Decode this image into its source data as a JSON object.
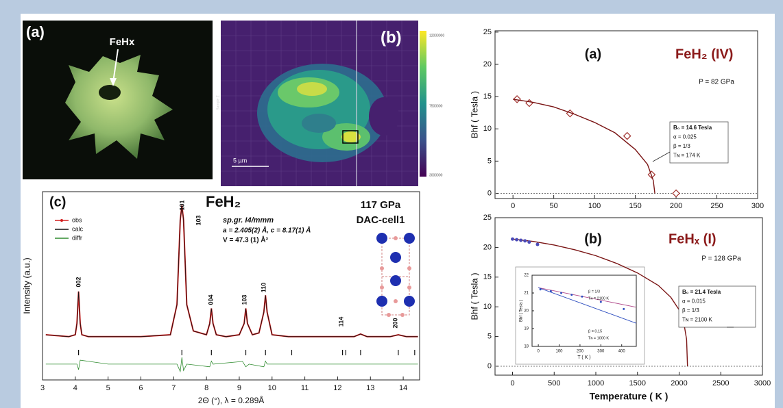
{
  "optical_image": {
    "label": "(a)",
    "arrow_label": "FeHx"
  },
  "map_image": {
    "label": "(b)",
    "scale_bar": "5 µm",
    "axis_label": "Sample Z",
    "colorbar_ticks": [
      "12000000",
      "7500000",
      "3000000"
    ]
  },
  "chart_data": [
    {
      "type": "line",
      "panel_label": "(c)",
      "title": "FeH₂",
      "annotations": [
        "sp.gr. I4/mmm",
        "a = 2.405(2) Å, c = 8.17(1) Å",
        "V = 47.3 (1) Å³",
        "117 GPa",
        "DAC-cell1"
      ],
      "peak_labels": [
        "002",
        "101",
        "103",
        "004",
        "103",
        "110",
        "114",
        "200"
      ],
      "xlabel": "2Θ (°), λ = 0.289Å",
      "ylabel": "Intensity (a.u.)",
      "xlim": [
        3,
        14.5
      ],
      "ylim": [
        0,
        100
      ],
      "xticks": [
        3,
        4,
        5,
        6,
        7,
        8,
        9,
        10,
        11,
        12,
        13,
        14
      ],
      "legend": "upper left",
      "series": [
        {
          "name": "obs",
          "color": "#d42020",
          "x": [
            3.1,
            3.8,
            4.0,
            4.05,
            4.1,
            4.15,
            4.2,
            4.4,
            5,
            6,
            6.9,
            7.1,
            7.2,
            7.25,
            7.3,
            7.4,
            7.6,
            8.0,
            8.1,
            8.15,
            8.2,
            8.3,
            8.6,
            9.0,
            9.15,
            9.2,
            9.25,
            9.4,
            9.6,
            9.75,
            9.8,
            9.85,
            10.0,
            10.5,
            11.5,
            12.5,
            12.7,
            12.9,
            13.6,
            13.85,
            14.1,
            14.45
          ],
          "values": [
            24,
            23,
            24,
            30,
            47,
            30,
            24,
            23,
            23,
            23,
            24,
            40,
            85,
            92.7,
            85,
            40,
            26,
            24,
            30,
            38,
            30,
            24,
            23,
            24,
            30,
            38,
            30,
            24,
            25,
            36,
            45,
            36,
            24,
            23,
            23,
            23,
            24.4,
            23,
            23,
            24,
            23,
            23
          ]
        },
        {
          "name": "calc",
          "color": "#111111",
          "x": [
            3.1,
            3.8,
            4.0,
            4.05,
            4.1,
            4.15,
            4.2,
            4.4,
            5,
            6,
            6.9,
            7.1,
            7.2,
            7.25,
            7.3,
            7.4,
            7.6,
            8.0,
            8.1,
            8.15,
            8.2,
            8.3,
            8.6,
            9.0,
            9.15,
            9.2,
            9.25,
            9.4,
            9.6,
            9.75,
            9.8,
            9.85,
            10.0,
            10.5,
            11.5,
            12.5,
            12.7,
            12.9,
            13.6,
            13.85,
            14.1,
            14.45
          ],
          "values": [
            24,
            23,
            24,
            30,
            47,
            30,
            24,
            23,
            23,
            23,
            24,
            40,
            85,
            92.7,
            85,
            40,
            26,
            24,
            30,
            38,
            30,
            24,
            23,
            24,
            30,
            38,
            30,
            24,
            25,
            36,
            45,
            36,
            24,
            23,
            23,
            23,
            24.4,
            23,
            23,
            24,
            23,
            23
          ]
        },
        {
          "name": "diffr",
          "color": "#2e8b2e",
          "x": [
            3.1,
            4.05,
            4.1,
            4.15,
            5,
            7.1,
            7.2,
            7.25,
            7.3,
            7.4,
            8.1,
            8.15,
            8.2,
            9.1,
            9.2,
            9.3,
            9.75,
            9.8,
            9.85,
            11,
            14.45
          ],
          "values": [
            8.4,
            8.4,
            5.5,
            10.5,
            8.4,
            8.4,
            4.5,
            12,
            5,
            8.4,
            7,
            10,
            8.4,
            9.8,
            7,
            8.4,
            7,
            10,
            8.4,
            8.4,
            8.4
          ]
        }
      ],
      "reflections": [
        4.1,
        7.25,
        8.15,
        9.2,
        9.8,
        10.6,
        12.15,
        12.25,
        12.7,
        13.85,
        14.35
      ]
    },
    {
      "type": "line",
      "panel_label": "(a)",
      "title": "FeH₂ (IV)",
      "pressure": "P = 82 GPa",
      "fit_params": [
        "B₀ = 14.6 Tesla",
        "α = 0.025",
        "β = 1/3",
        "Tɴ = 174 K"
      ],
      "ylabel": "Bhf ( Tesla )",
      "xlim": [
        -22,
        300
      ],
      "ylim": [
        -0.8,
        25.2
      ],
      "xticks": [
        0,
        50,
        100,
        150,
        200,
        250,
        300
      ],
      "yticks": [
        0,
        5,
        10,
        15,
        20,
        25
      ],
      "zero_line": true,
      "series": [
        {
          "color": "#a0302c",
          "marker": "diamond",
          "x": [
            5,
            20,
            70,
            140,
            170,
            200
          ],
          "values": [
            14.6,
            14,
            12.4,
            8.9,
            2.9,
            0
          ]
        },
        {
          "color": "#7a1414",
          "x": [
            0,
            25,
            50,
            75,
            100,
            125,
            150,
            165,
            172,
            174
          ],
          "values": [
            14.6,
            14.1,
            13.4,
            12.3,
            11.0,
            9.4,
            6.8,
            4.5,
            2.0,
            0
          ]
        }
      ]
    },
    {
      "type": "line",
      "panel_label": "(b)",
      "title": "FeHₓ (I)",
      "pressure": "P = 128 GPa",
      "fit_params": [
        "B₀ = 21.4 Tesla",
        "α = 0.015",
        "β = 1/3",
        "Tɴ = 2100 K"
      ],
      "xlabel": "Temperature ( K )",
      "ylabel": "Bhf ( Tesla )",
      "xlim": [
        -210,
        3000
      ],
      "ylim": [
        -1.5,
        25
      ],
      "xticks": [
        0,
        500,
        1000,
        1500,
        2000,
        2500,
        3000
      ],
      "yticks": [
        0,
        5,
        10,
        15,
        20,
        25
      ],
      "zero_line": true,
      "series": [
        {
          "color": "#7a1414",
          "x": [
            0,
            250,
            500,
            750,
            1000,
            1250,
            1500,
            1750,
            1900,
            2000,
            2060,
            2090,
            2100
          ],
          "values": [
            21.4,
            21.0,
            20.4,
            19.6,
            18.6,
            17.3,
            15.7,
            13.6,
            11.6,
            9.5,
            7.0,
            4.5,
            0
          ]
        },
        {
          "color": "#4a4ab8",
          "marker": "circle",
          "x": [
            0,
            50,
            100,
            150,
            200,
            300
          ],
          "values": [
            21.4,
            21.3,
            21.2,
            21.1,
            20.9,
            20.5
          ]
        }
      ]
    },
    {
      "type": "line",
      "xlabel": "T ( K )",
      "ylabel": "Bhf ( Tesla )",
      "xlim": [
        -30,
        470
      ],
      "ylim": [
        18,
        22
      ],
      "xticks": [
        0,
        100,
        200,
        300,
        400
      ],
      "yticks": [
        18,
        19,
        20,
        21,
        22
      ],
      "annotations": [
        "β = 1/3",
        "Tɴ = 2100 K",
        "β = 0.15",
        "Tɴ = 1000 K"
      ],
      "series": [
        {
          "color": "#b04a8a",
          "x": [
            0,
            470
          ],
          "values": [
            21.3,
            20.2
          ]
        },
        {
          "color": "#3050c0",
          "x": [
            0,
            470
          ],
          "values": [
            21.3,
            19.3
          ]
        },
        {
          "color": "#3050c0",
          "marker": "circle",
          "x": [
            10,
            60,
            110,
            160,
            210,
            300,
            410
          ],
          "values": [
            21.2,
            21.1,
            21.0,
            20.9,
            20.8,
            20.5,
            20.1
          ]
        }
      ]
    }
  ]
}
